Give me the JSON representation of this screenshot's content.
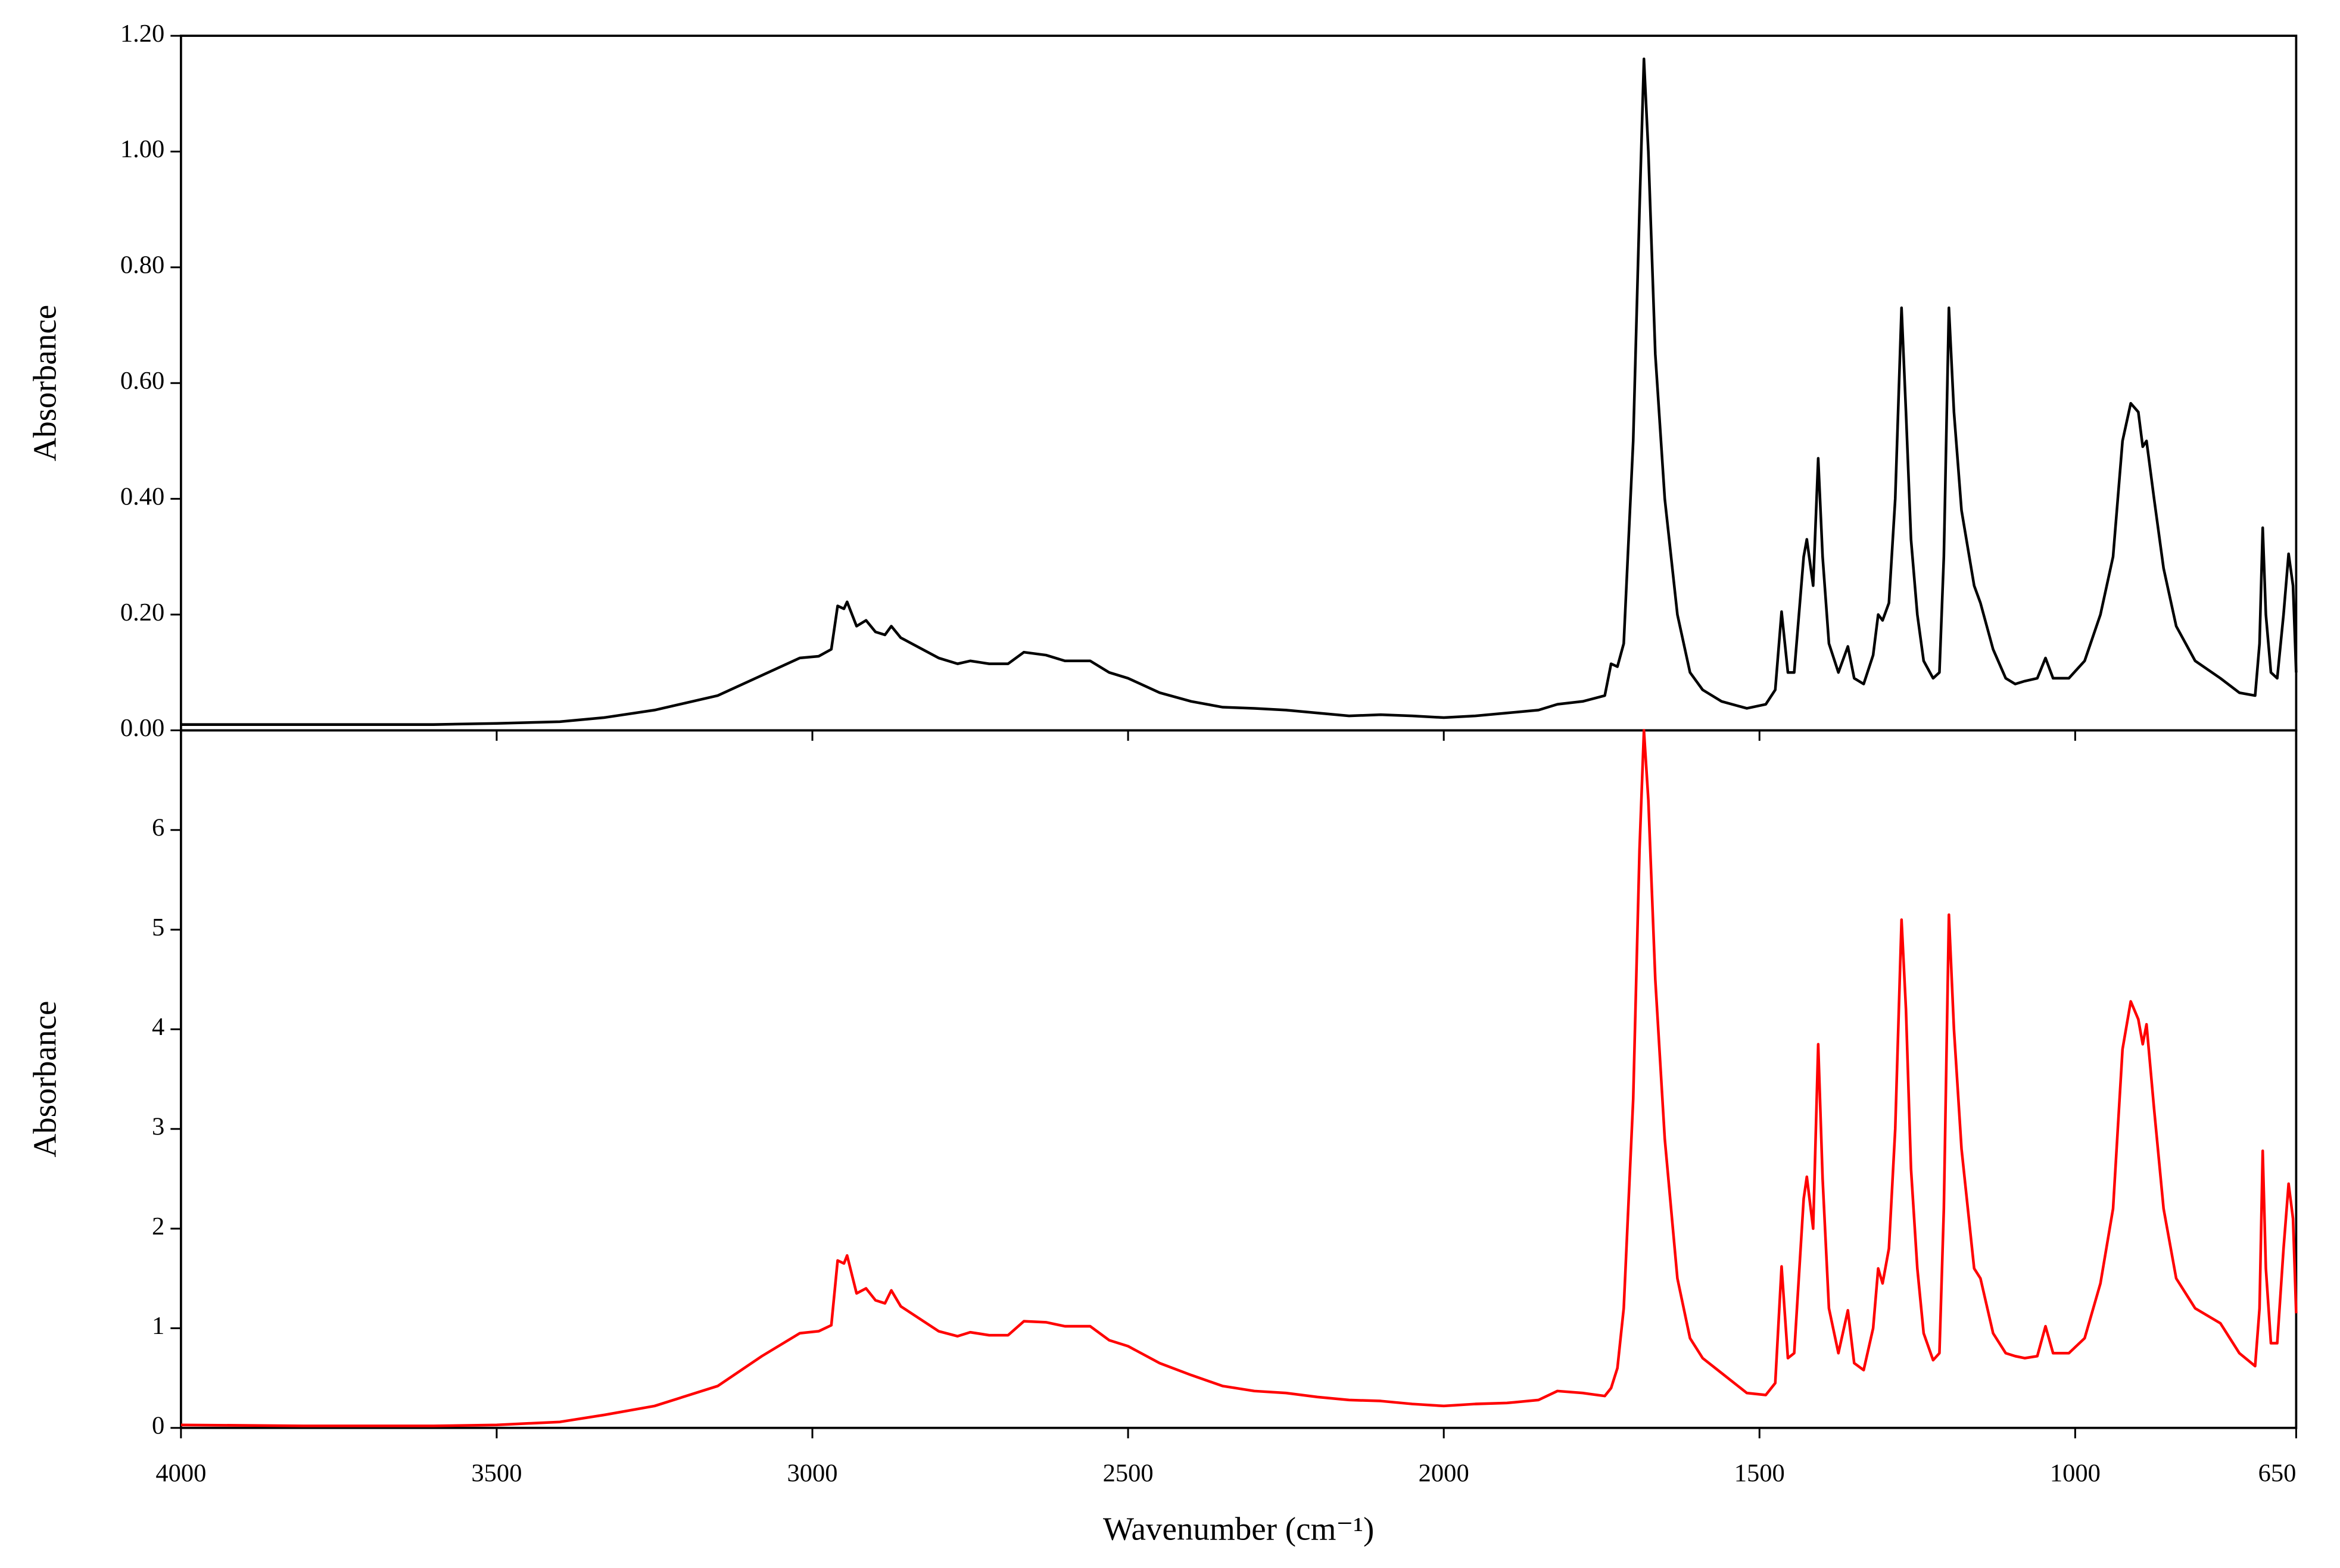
{
  "chart_data": [
    {
      "type": "line",
      "ylabel": "Absorbance",
      "x": [
        4000,
        3800,
        3600,
        3500,
        3400,
        3330,
        3250,
        3150,
        3080,
        3020,
        2990,
        2970,
        2960,
        2950,
        2945,
        2930,
        2915,
        2900,
        2885,
        2875,
        2860,
        2800,
        2770,
        2750,
        2720,
        2690,
        2665,
        2630,
        2600,
        2560,
        2530,
        2500,
        2450,
        2400,
        2350,
        2300,
        2250,
        2200,
        2150,
        2100,
        2050,
        2000,
        1950,
        1900,
        1850,
        1820,
        1780,
        1745,
        1735,
        1725,
        1715,
        1700,
        1690,
        1683,
        1676,
        1665,
        1650,
        1630,
        1610,
        1590,
        1560,
        1520,
        1490,
        1475,
        1465,
        1455,
        1445,
        1430,
        1425,
        1415,
        1407,
        1400,
        1390,
        1375,
        1360,
        1350,
        1335,
        1320,
        1312,
        1305,
        1295,
        1285,
        1275,
        1268,
        1260,
        1250,
        1240,
        1225,
        1215,
        1208,
        1200,
        1192,
        1180,
        1160,
        1150,
        1130,
        1110,
        1095,
        1080,
        1060,
        1047,
        1035,
        1010,
        985,
        960,
        940,
        925,
        912,
        900,
        893,
        887,
        875,
        860,
        840,
        810,
        770,
        740,
        715,
        708,
        703,
        698,
        690,
        680,
        670,
        662,
        655,
        650
      ],
      "series": [
        {
          "color": "#000000",
          "values": [
            0.01,
            0.01,
            0.01,
            0.012,
            0.015,
            0.022,
            0.035,
            0.06,
            0.095,
            0.125,
            0.128,
            0.14,
            0.215,
            0.21,
            0.222,
            0.18,
            0.19,
            0.17,
            0.165,
            0.18,
            0.16,
            0.125,
            0.115,
            0.12,
            0.115,
            0.115,
            0.135,
            0.13,
            0.12,
            0.12,
            0.1,
            0.09,
            0.065,
            0.05,
            0.04,
            0.038,
            0.035,
            0.03,
            0.025,
            0.027,
            0.025,
            0.022,
            0.025,
            0.03,
            0.035,
            0.045,
            0.05,
            0.06,
            0.115,
            0.11,
            0.15,
            0.5,
            0.9,
            1.16,
            1.0,
            0.65,
            0.4,
            0.2,
            0.1,
            0.07,
            0.05,
            0.038,
            0.045,
            0.07,
            0.205,
            0.1,
            0.1,
            0.3,
            0.33,
            0.25,
            0.47,
            0.3,
            0.15,
            0.1,
            0.145,
            0.09,
            0.08,
            0.13,
            0.2,
            0.19,
            0.22,
            0.4,
            0.73,
            0.55,
            0.33,
            0.2,
            0.12,
            0.09,
            0.1,
            0.3,
            0.73,
            0.55,
            0.38,
            0.25,
            0.22,
            0.14,
            0.09,
            0.08,
            0.085,
            0.09,
            0.125,
            0.09,
            0.09,
            0.12,
            0.2,
            0.3,
            0.5,
            0.565,
            0.55,
            0.49,
            0.5,
            0.4,
            0.28,
            0.18,
            0.12,
            0.09,
            0.065,
            0.06,
            0.15,
            0.35,
            0.2,
            0.1,
            0.09,
            0.2,
            0.305,
            0.25,
            0.1
          ]
        }
      ],
      "xlim": [
        4000,
        650
      ],
      "ylim": [
        0,
        1.2
      ],
      "yticks": [
        {
          "value": 0,
          "label": "0.00"
        },
        {
          "value": 0.2,
          "label": "0.20"
        },
        {
          "value": 0.4,
          "label": "0.40"
        },
        {
          "value": 0.6,
          "label": "0.60"
        },
        {
          "value": 0.8,
          "label": "0.80"
        },
        {
          "value": 1.0,
          "label": "1.00"
        },
        {
          "value": 1.2,
          "label": "1.20"
        }
      ]
    },
    {
      "type": "line",
      "ylabel": "Absorbance",
      "xlabel": "Wavenumber (cm⁻¹)",
      "x": [
        4000,
        3800,
        3600,
        3500,
        3400,
        3330,
        3250,
        3150,
        3080,
        3020,
        2990,
        2970,
        2960,
        2950,
        2945,
        2930,
        2915,
        2900,
        2885,
        2875,
        2860,
        2800,
        2770,
        2750,
        2720,
        2690,
        2665,
        2630,
        2600,
        2560,
        2530,
        2500,
        2450,
        2400,
        2350,
        2300,
        2250,
        2200,
        2150,
        2100,
        2050,
        2000,
        1950,
        1900,
        1850,
        1820,
        1780,
        1745,
        1735,
        1725,
        1715,
        1700,
        1690,
        1683,
        1676,
        1665,
        1650,
        1630,
        1610,
        1590,
        1560,
        1520,
        1490,
        1475,
        1465,
        1455,
        1445,
        1430,
        1425,
        1415,
        1407,
        1400,
        1390,
        1375,
        1360,
        1350,
        1335,
        1320,
        1312,
        1305,
        1295,
        1285,
        1275,
        1268,
        1260,
        1250,
        1240,
        1225,
        1215,
        1208,
        1200,
        1192,
        1180,
        1160,
        1150,
        1130,
        1110,
        1095,
        1080,
        1060,
        1047,
        1035,
        1010,
        985,
        960,
        940,
        925,
        912,
        900,
        893,
        887,
        875,
        860,
        840,
        810,
        770,
        740,
        715,
        708,
        703,
        698,
        690,
        680,
        670,
        662,
        655,
        650
      ],
      "series": [
        {
          "color": "#ff0000",
          "values": [
            0.03,
            0.02,
            0.02,
            0.03,
            0.06,
            0.13,
            0.22,
            0.42,
            0.72,
            0.95,
            0.97,
            1.03,
            1.68,
            1.65,
            1.73,
            1.35,
            1.4,
            1.28,
            1.25,
            1.38,
            1.22,
            0.97,
            0.92,
            0.96,
            0.93,
            0.93,
            1.07,
            1.06,
            1.02,
            1.02,
            0.88,
            0.82,
            0.65,
            0.53,
            0.42,
            0.37,
            0.35,
            0.31,
            0.28,
            0.27,
            0.24,
            0.22,
            0.24,
            0.25,
            0.28,
            0.37,
            0.35,
            0.32,
            0.4,
            0.6,
            1.2,
            3.3,
            5.8,
            7.0,
            6.3,
            4.5,
            2.9,
            1.5,
            0.9,
            0.7,
            0.55,
            0.35,
            0.33,
            0.45,
            1.62,
            0.7,
            0.75,
            2.3,
            2.52,
            2.0,
            3.85,
            2.5,
            1.2,
            0.75,
            1.18,
            0.65,
            0.58,
            1.0,
            1.6,
            1.45,
            1.8,
            3.0,
            5.1,
            4.2,
            2.6,
            1.6,
            0.95,
            0.68,
            0.75,
            2.2,
            5.15,
            4.0,
            2.8,
            1.6,
            1.5,
            0.95,
            0.75,
            0.72,
            0.7,
            0.72,
            1.02,
            0.75,
            0.75,
            0.9,
            1.45,
            2.2,
            3.8,
            4.28,
            4.1,
            3.85,
            4.05,
            3.2,
            2.2,
            1.5,
            1.2,
            1.05,
            0.75,
            0.62,
            1.2,
            2.78,
            1.6,
            0.85,
            0.85,
            1.8,
            2.45,
            2.1,
            1.15
          ]
        }
      ],
      "xlim": [
        4000,
        650
      ],
      "ylim": [
        0,
        7
      ],
      "xticks": [
        4000,
        3500,
        3000,
        2500,
        2000,
        1500,
        1000,
        650
      ],
      "yticks": [
        0,
        1,
        2,
        3,
        4,
        5,
        6
      ]
    }
  ]
}
